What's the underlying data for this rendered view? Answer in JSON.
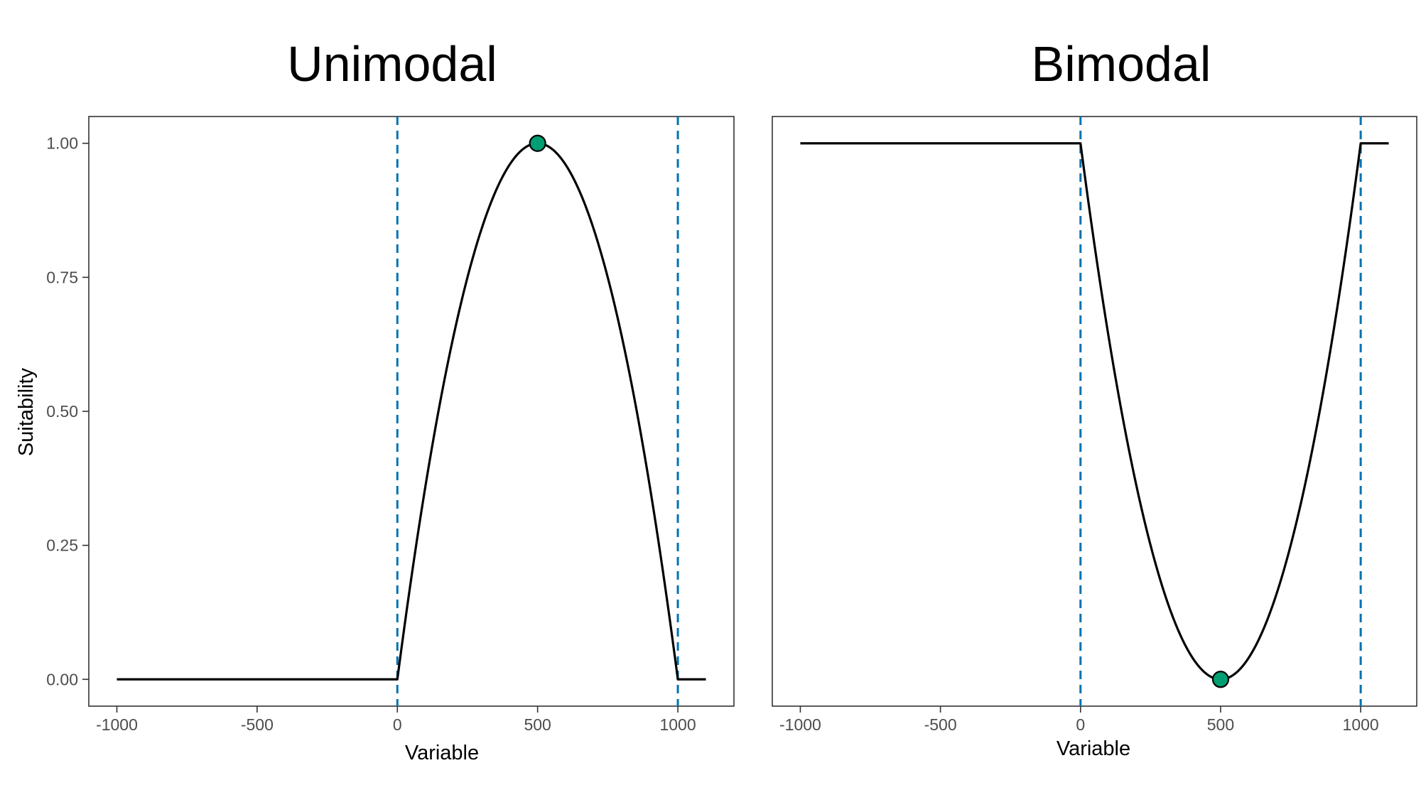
{
  "chart_data": [
    {
      "type": "line",
      "title": "Unimodal",
      "xlabel": "Variable",
      "ylabel": "Suitability",
      "xlim": [
        -1100,
        1200
      ],
      "ylim": [
        -0.05,
        1.05
      ],
      "x_ticks": [
        "-1000",
        "-500",
        "0",
        "500",
        "1000"
      ],
      "y_ticks": [
        "0.00",
        "0.25",
        "0.50",
        "0.75",
        "1.00"
      ],
      "grid": false,
      "series": [
        {
          "style": "solid",
          "color": "#000000",
          "shape": "inverted-parabola",
          "x_range": [
            -1000,
            1100
          ],
          "points": [
            [
              -1000,
              0
            ],
            [
              0,
              0
            ],
            [
              250,
              0.75
            ],
            [
              500,
              1.0
            ],
            [
              750,
              0.75
            ],
            [
              1000,
              0
            ],
            [
              1100,
              0
            ]
          ]
        }
      ],
      "vlines": [
        {
          "x": 0,
          "style": "dashed",
          "color": "#0072B2"
        },
        {
          "x": 1000,
          "style": "dashed",
          "color": "#0072B2"
        }
      ],
      "marker": {
        "x": 500,
        "y": 1.0,
        "color": "#009E73"
      }
    },
    {
      "type": "line",
      "title": "Bimodal",
      "xlabel": "Variable",
      "ylabel": "",
      "xlim": [
        -1100,
        1200
      ],
      "ylim": [
        -0.05,
        1.05
      ],
      "x_ticks": [
        "-1000",
        "-500",
        "0",
        "500",
        "1000"
      ],
      "y_ticks": [],
      "grid": false,
      "series": [
        {
          "style": "solid",
          "color": "#000000",
          "shape": "parabola",
          "x_range": [
            -1000,
            1100
          ],
          "points": [
            [
              -1000,
              1
            ],
            [
              0,
              1
            ],
            [
              250,
              0.25
            ],
            [
              500,
              0.0
            ],
            [
              750,
              0.25
            ],
            [
              1000,
              1
            ],
            [
              1100,
              1
            ]
          ]
        }
      ],
      "vlines": [
        {
          "x": 0,
          "style": "dashed",
          "color": "#0072B2"
        },
        {
          "x": 1000,
          "style": "dashed",
          "color": "#0072B2"
        }
      ],
      "marker": {
        "x": 500,
        "y": 0.0,
        "color": "#009E73"
      }
    }
  ]
}
